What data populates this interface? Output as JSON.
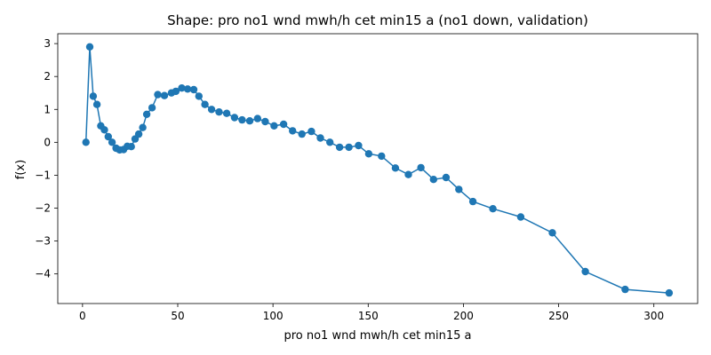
{
  "chart_data": {
    "type": "line",
    "title": "Shape: pro no1 wnd mwh/h cet min15 a (no1 down, validation)",
    "xlabel": "pro no1 wnd mwh/h cet min15 a",
    "ylabel": "f(x)",
    "xlim": [
      -13,
      323
    ],
    "ylim": [
      -4.9,
      3.3
    ],
    "xticks": [
      0,
      50,
      100,
      150,
      200,
      250,
      300
    ],
    "yticks": [
      -4,
      -3,
      -2,
      -1,
      0,
      1,
      2,
      3
    ],
    "grid": false,
    "legend": "none",
    "color": "#1f77b4",
    "series": [
      {
        "x": [
          1.8,
          3.8,
          5.6,
          7.6,
          9.6,
          11.5,
          13.5,
          15.5,
          17.6,
          19.5,
          21.6,
          23.5,
          25.6,
          27.6,
          29.5,
          31.6,
          33.7,
          36.5,
          39.5,
          43.0,
          46.7,
          49.0,
          52.1,
          55.2,
          58.4,
          61.1,
          64.3,
          67.8,
          71.7,
          75.7,
          79.8,
          83.8,
          87.8,
          91.9,
          95.9,
          100.6,
          105.6,
          110.3,
          115.2,
          120.2,
          124.9,
          129.9,
          135.0,
          139.9,
          144.9,
          150.3,
          157.0,
          164.3,
          171.1,
          177.7,
          184.3,
          190.9,
          197.6,
          205.0,
          215.5,
          230.1,
          246.7,
          264.0,
          284.9,
          308.0
        ],
        "y": [
          0.0,
          2.9,
          1.4,
          1.15,
          0.5,
          0.38,
          0.17,
          0.0,
          -0.18,
          -0.23,
          -0.22,
          -0.12,
          -0.13,
          0.1,
          0.25,
          0.45,
          0.85,
          1.05,
          1.45,
          1.42,
          1.5,
          1.55,
          1.65,
          1.62,
          1.6,
          1.4,
          1.15,
          1.0,
          0.92,
          0.88,
          0.75,
          0.68,
          0.65,
          0.72,
          0.63,
          0.5,
          0.55,
          0.35,
          0.25,
          0.33,
          0.13,
          0.0,
          -0.15,
          -0.15,
          -0.1,
          -0.35,
          -0.42,
          -0.78,
          -0.98,
          -0.77,
          -1.13,
          -1.07,
          -1.43,
          -1.8,
          -2.02,
          -2.27,
          -2.75,
          -3.93,
          -4.47,
          -4.58
        ]
      }
    ]
  }
}
